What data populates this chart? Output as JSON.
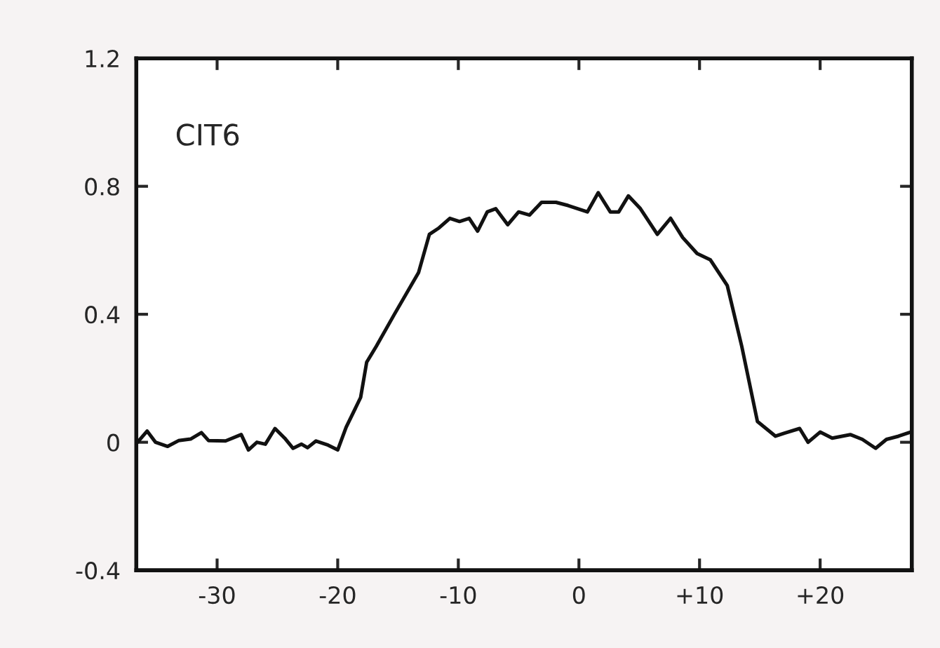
{
  "chart_data": {
    "type": "line",
    "annotations": [
      "CIT6"
    ],
    "x": [
      -36.6,
      -35.8,
      -35.1,
      -34.1,
      -33.2,
      -32.2,
      -31.3,
      -30.7,
      -29.3,
      -28.0,
      -27.4,
      -26.7,
      -26.0,
      -25.2,
      -24.4,
      -23.7,
      -23.0,
      -22.5,
      -21.8,
      -20.8,
      -20.0,
      -19.3,
      -18.1,
      -17.6,
      -16.8,
      -15.3,
      -13.3,
      -12.4,
      -11.6,
      -10.7,
      -9.9,
      -9.1,
      -8.4,
      -7.6,
      -6.9,
      -5.9,
      -5.0,
      -4.1,
      -3.1,
      -1.9,
      -0.9,
      0.7,
      1.6,
      2.6,
      3.3,
      4.1,
      5.1,
      6.5,
      7.6,
      8.6,
      9.8,
      10.9,
      12.3,
      13.5,
      14.8,
      16.3,
      17.0,
      18.3,
      19.0,
      20.0,
      21.0,
      22.5,
      23.5,
      24.6,
      25.5,
      26.5,
      27.5
    ],
    "series": [
      {
        "color": "#111111",
        "values": [
          0,
          0.035,
          0,
          -0.013,
          0.005,
          0.01,
          0.03,
          0.005,
          0.004,
          0.024,
          -0.024,
          0,
          -0.006,
          0.043,
          0.013,
          -0.019,
          -0.006,
          -0.017,
          0.004,
          -0.009,
          -0.024,
          0.047,
          0.14,
          0.25,
          0.3,
          0.4,
          0.53,
          0.65,
          0.67,
          0.7,
          0.69,
          0.7,
          0.66,
          0.72,
          0.73,
          0.68,
          0.72,
          0.71,
          0.75,
          0.75,
          0.74,
          0.72,
          0.78,
          0.72,
          0.72,
          0.77,
          0.73,
          0.65,
          0.7,
          0.64,
          0.59,
          0.57,
          0.49,
          0.3,
          0.065,
          0.019,
          0.028,
          0.043,
          0,
          0.032,
          0.013,
          0.024,
          0.009,
          -0.019,
          0.009,
          0.019,
          0.032
        ]
      }
    ],
    "xlim": [
      -36.7,
      27.6
    ],
    "ylim": [
      -0.4,
      1.2
    ],
    "xticks": [
      -30,
      -20,
      -10,
      0,
      {
        "value": 10,
        "label": "+10"
      },
      {
        "value": 20,
        "label": "+20"
      }
    ],
    "yticks": [
      -0.4,
      0,
      0.4,
      0.8,
      1.2
    ],
    "line_style": "solid"
  }
}
